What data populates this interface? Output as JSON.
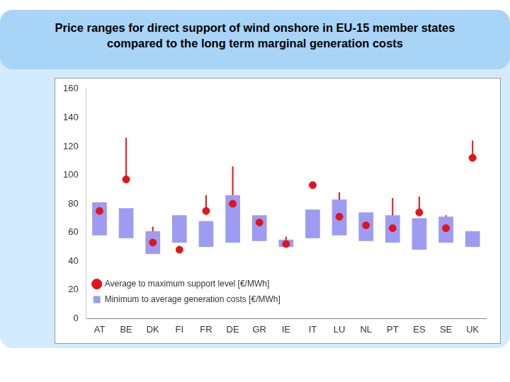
{
  "chart_data": {
    "type": "bar",
    "title": "Price ranges for direct support of wind onshore in EU-15 member states compared to the long term marginal generation costs",
    "categories": [
      "AT",
      "BE",
      "DK",
      "FI",
      "FR",
      "DE",
      "GR",
      "IE",
      "IT",
      "LU",
      "NL",
      "PT",
      "ES",
      "SE",
      "UK"
    ],
    "series": [
      {
        "name": "Minimum to average generation costs [€/MWh]",
        "type": "bar",
        "color": "#9d9cf2",
        "values": [
          [
            58,
            81
          ],
          [
            56,
            77
          ],
          [
            45,
            61
          ],
          [
            53,
            72
          ],
          [
            50,
            68
          ],
          [
            53,
            86
          ],
          [
            54,
            72
          ],
          [
            50,
            55
          ],
          [
            56,
            76
          ],
          [
            58,
            83
          ],
          [
            54,
            74
          ],
          [
            53,
            72
          ],
          [
            48,
            70
          ],
          [
            53,
            71
          ],
          [
            50,
            61
          ]
        ]
      },
      {
        "name": "Average to maximum support level [€/MWh]",
        "type": "scatter",
        "color": "#e3131b",
        "marker": "circle",
        "values": [
          75,
          97,
          53,
          48,
          75,
          80,
          67,
          52,
          93,
          71,
          65,
          63,
          74,
          63,
          112
        ],
        "max": [
          75,
          126,
          64,
          48,
          86,
          106,
          70,
          57,
          93,
          88,
          71,
          84,
          85,
          72,
          124
        ]
      }
    ],
    "ylim": [
      0,
      160
    ],
    "yticks": [
      0,
      20,
      40,
      60,
      80,
      100,
      120,
      140,
      160
    ],
    "grid": false,
    "legend": "upper right"
  }
}
